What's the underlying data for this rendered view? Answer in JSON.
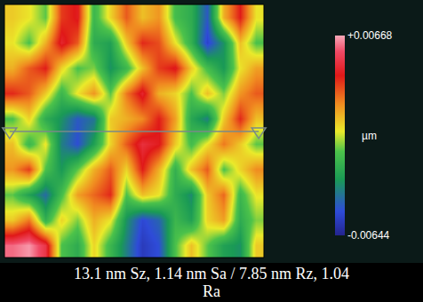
{
  "chart_data": {
    "type": "heatmap",
    "z": [
      [
        0.001,
        0.0005,
        -0.0008,
        0.0035,
        0.0042,
        -0.0015,
        0.0008,
        0.003,
        0.0012,
        0.002,
        -0.0012,
        -0.002,
        -0.0045,
        0.0015,
        0.004,
        0.0005
      ],
      [
        0.0005,
        -0.001,
        0.0015,
        0.0045,
        0.003,
        -0.002,
        -0.0025,
        0.001,
        0.0038,
        0.0032,
        0.0005,
        -0.0018,
        -0.0052,
        -0.003,
        0.0012,
        -0.001
      ],
      [
        0.0015,
        0.003,
        0.004,
        0.0008,
        -0.001,
        -0.0005,
        -0.003,
        -0.0015,
        0.0012,
        0.0035,
        0.0042,
        0.001,
        -0.0012,
        -0.0028,
        0.0005,
        0.0018
      ],
      [
        0.0038,
        0.003,
        0.001,
        -0.0015,
        0.0005,
        0.002,
        -0.0008,
        0.0025,
        0.0045,
        0.0015,
        0.0008,
        -0.001,
        0.0012,
        -0.0005,
        0.002,
        0.003
      ],
      [
        -0.001,
        0.0008,
        -0.002,
        -0.003,
        -0.0045,
        -0.0038,
        0.001,
        0.0015,
        0.0022,
        0.004,
        0.0018,
        -0.0022,
        -0.0035,
        0.001,
        0.0038,
        0.0012
      ],
      [
        0.0012,
        -0.0015,
        0.0005,
        -0.0035,
        -0.0048,
        -0.0025,
        0.0008,
        0.003,
        0.0048,
        0.0042,
        0.001,
        -0.0012,
        0.0005,
        0.0025,
        0.001,
        -0.0008
      ],
      [
        0.002,
        0.0035,
        -0.001,
        -0.0028,
        -0.0008,
        0.0015,
        0.003,
        0.0008,
        0.004,
        0.0015,
        -0.0018,
        0.0012,
        0.003,
        -0.001,
        0.0008,
        0.0022
      ],
      [
        -0.0008,
        -0.0025,
        -0.004,
        -0.0012,
        0.0018,
        0.0028,
        0.0038,
        -0.001,
        0.0012,
        0.0005,
        -0.002,
        -0.0032,
        0.001,
        0.0028,
        -0.0015,
        0.0005
      ],
      [
        0.001,
        0.0025,
        -0.0018,
        0.0008,
        -0.0005,
        0.0015,
        0.0005,
        -0.003,
        -0.005,
        -0.0042,
        -0.0015,
        -0.0025,
        0.0008,
        0.0018,
        -0.002,
        -0.0005
      ],
      [
        0.006,
        0.0065,
        0.005,
        -0.001,
        -0.002,
        0.0008,
        -0.0015,
        -0.0035,
        -0.0055,
        -0.0048,
        -0.001,
        0.0012,
        -0.0008,
        -0.0025,
        -0.003,
        0.001
      ]
    ],
    "zlim": [
      -0.00644,
      0.00668
    ],
    "zticks": [
      {
        "value": -0.00644,
        "label": "-0.00644"
      },
      {
        "value": 0.00668,
        "label": "+0.00668"
      }
    ],
    "colorbar_title": "µm",
    "tick_labels": false,
    "caption": [
      "13.1 nm Sz, 1.14 nm Sa / 7.85 nm Rz, 1.04",
      "Ra"
    ]
  }
}
